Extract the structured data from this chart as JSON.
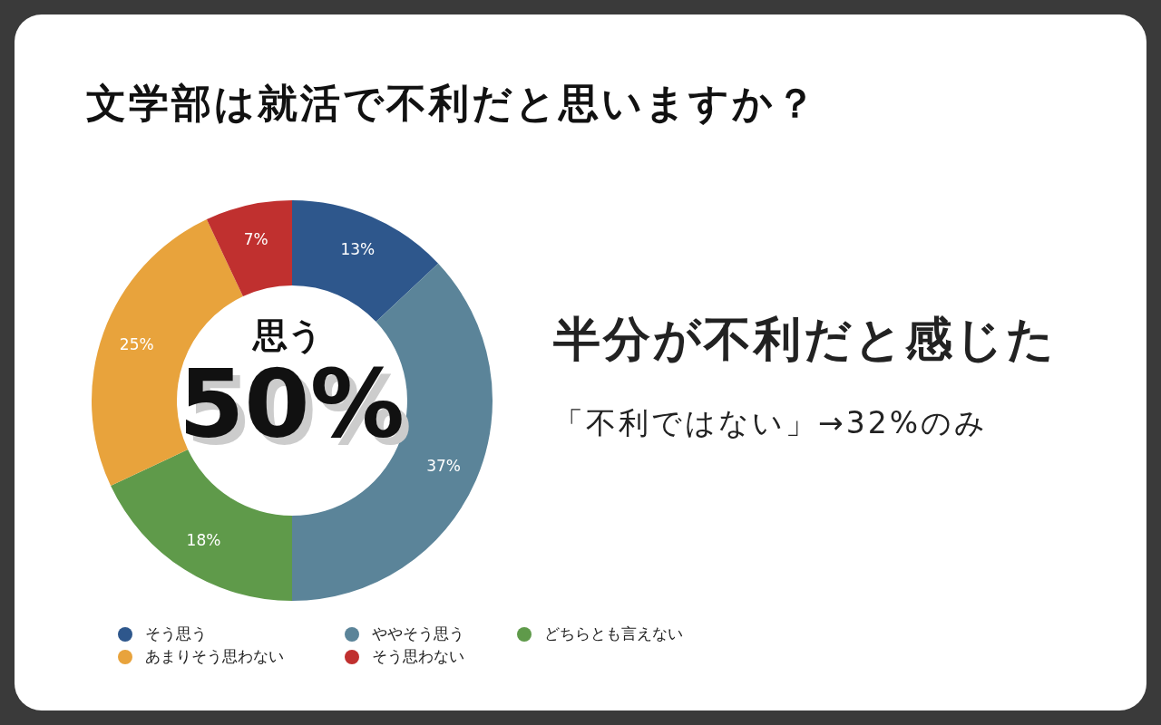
{
  "chart_data": {
    "type": "donut",
    "title": "文学部は就活で不利だと思いますか？",
    "categories": [
      "そう思う",
      "ややそう思う",
      "どちらとも言えない",
      "あまりそう思わない",
      "そう思わない"
    ],
    "values": [
      13,
      37,
      18,
      25,
      7
    ],
    "colors": [
      "#2e578c",
      "#5b8499",
      "#5f9a4a",
      "#e8a33c",
      "#c0302f"
    ],
    "value_labels": [
      "13%",
      "37%",
      "18%",
      "25%",
      "7%"
    ],
    "legend": "bottom",
    "annotations": [
      "思う",
      "50%",
      "半分が不利だと感じた",
      "「不利ではない」→32%のみ"
    ]
  }
}
